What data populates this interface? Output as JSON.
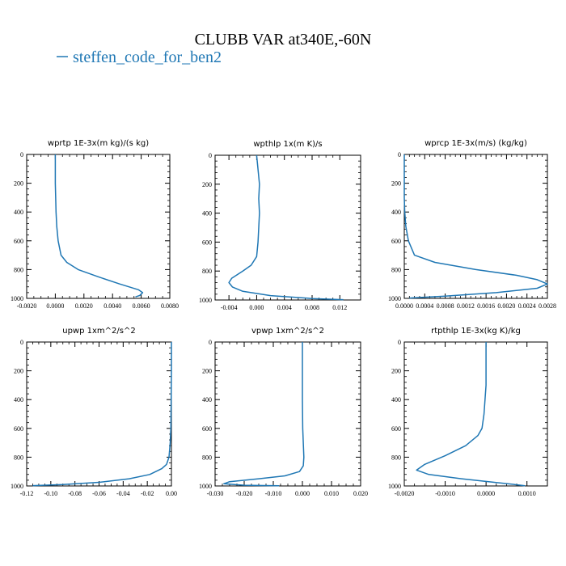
{
  "figure": {
    "title": "CLUBB VAR at340E,-60N",
    "legend": {
      "label": "steffen_code_for_ben2",
      "color": "#1f77b4"
    }
  },
  "chart_data": [
    {
      "type": "line",
      "title": "wprtp  1E-3x(m kg)/(s kg)",
      "xlim": [
        -0.002,
        0.008
      ],
      "ylim": [
        1000,
        0
      ],
      "xticks": [
        -0.002,
        0.0,
        0.002,
        0.004,
        0.006,
        0.008
      ],
      "xtick_labels": [
        "-0.0020",
        "0.0000",
        "0.0020",
        "0.0040",
        "0.0060",
        "0.0080"
      ],
      "yticks": [
        0,
        200,
        400,
        600,
        800,
        1000
      ],
      "ytick_labels": [
        "0",
        "200",
        "400",
        "600",
        "800",
        "1000"
      ],
      "series": [
        {
          "name": "steffen_code_for_ben2",
          "x": [
            0.0,
            0.0,
            5e-05,
            0.0001,
            0.0002,
            0.0004,
            0.0008,
            0.0016,
            0.003,
            0.0045,
            0.0058,
            0.0061,
            0.0059,
            0.0056
          ],
          "y": [
            0,
            200,
            400,
            500,
            600,
            700,
            750,
            800,
            850,
            900,
            940,
            960,
            980,
            990
          ]
        }
      ]
    },
    {
      "type": "line",
      "title": "wpthlp  1x(m K)/s",
      "xlim": [
        -0.006,
        0.015
      ],
      "ylim": [
        1000,
        0
      ],
      "xticks": [
        -0.004,
        0.0,
        0.004,
        0.008,
        0.012
      ],
      "xtick_labels": [
        "-0.004",
        "0.000",
        "0.004",
        "0.008",
        "0.012"
      ],
      "yticks": [
        0,
        200,
        400,
        600,
        800,
        1000
      ],
      "ytick_labels": [
        "0",
        "200",
        "400",
        "600",
        "800",
        "1000"
      ],
      "series": [
        {
          "name": "steffen_code_for_ben2",
          "x": [
            0.0,
            0.0004,
            0.0003,
            0.0004,
            0.0002,
            0.0,
            -0.0008,
            -0.002,
            -0.0036,
            -0.004,
            -0.0035,
            -0.002,
            0.002,
            0.008,
            0.0125
          ],
          "y": [
            0,
            200,
            300,
            400,
            600,
            700,
            760,
            800,
            850,
            880,
            910,
            940,
            970,
            990,
            998
          ]
        }
      ]
    },
    {
      "type": "line",
      "title": "wprcp  1E-3x(m/s) (kg/kg)",
      "xlim": [
        0.0,
        0.0028
      ],
      "ylim": [
        1000,
        0
      ],
      "xticks": [
        0.0,
        0.0004,
        0.0008,
        0.0012,
        0.0016,
        0.002,
        0.0024,
        0.0028
      ],
      "xtick_labels": [
        "0.0000",
        "0.0004",
        "0.0008",
        "0.0012",
        "0.0016",
        "0.0020",
        "0.0024",
        "0.0028"
      ],
      "yticks": [
        0,
        200,
        400,
        600,
        800,
        1000
      ],
      "ytick_labels": [
        "0",
        "200",
        "400",
        "600",
        "800",
        "1000"
      ],
      "series": [
        {
          "name": "steffen_code_for_ben2",
          "x": [
            0.0,
            0.0,
            1e-05,
            3e-05,
            8e-05,
            0.0002,
            0.0006,
            0.0014,
            0.0022,
            0.0026,
            0.0028,
            0.0026,
            0.0018,
            0.0008,
            0.0001
          ],
          "y": [
            0,
            300,
            400,
            500,
            600,
            700,
            750,
            800,
            840,
            870,
            900,
            930,
            960,
            985,
            998
          ]
        }
      ]
    },
    {
      "type": "line",
      "title": "upwp  1xm^2/s^2",
      "xlim": [
        -0.12,
        0.0
      ],
      "ylim": [
        1000,
        0
      ],
      "xticks": [
        -0.12,
        -0.1,
        -0.08,
        -0.06,
        -0.04,
        -0.02,
        0.0
      ],
      "xtick_labels": [
        "-0.12",
        "-0.10",
        "-0.08",
        "-0.06",
        "-0.04",
        "-0.02",
        "0.00"
      ],
      "yticks": [
        0,
        200,
        400,
        600,
        800,
        1000
      ],
      "ytick_labels": [
        "0",
        "200",
        "400",
        "600",
        "800",
        "1000"
      ],
      "series": [
        {
          "name": "steffen_code_for_ben2",
          "x": [
            0.0,
            0.0,
            -0.0002,
            -0.0005,
            -0.001,
            -0.002,
            -0.004,
            -0.008,
            -0.018,
            -0.035,
            -0.06,
            -0.09,
            -0.115
          ],
          "y": [
            0,
            200,
            400,
            600,
            700,
            800,
            850,
            880,
            920,
            950,
            975,
            990,
            998
          ]
        }
      ]
    },
    {
      "type": "line",
      "title": "vpwp  1xm^2/s^2",
      "xlim": [
        -0.03,
        0.02
      ],
      "ylim": [
        1000,
        0
      ],
      "xticks": [
        -0.03,
        -0.02,
        -0.01,
        0.0,
        0.01,
        0.02
      ],
      "xtick_labels": [
        "-0.030",
        "-0.020",
        "-0.010",
        "0.000",
        "0.010",
        "0.020"
      ],
      "yticks": [
        0,
        200,
        400,
        600,
        800,
        1000
      ],
      "ytick_labels": [
        "0",
        "200",
        "400",
        "600",
        "800",
        "1000"
      ],
      "series": [
        {
          "name": "steffen_code_for_ben2",
          "x": [
            0.0,
            0.0,
            0.0,
            0.0001,
            0.0003,
            0.0005,
            0.0003,
            -0.001,
            -0.006,
            -0.015,
            -0.025,
            -0.027,
            -0.02,
            -0.008
          ],
          "y": [
            0,
            200,
            400,
            600,
            700,
            800,
            860,
            900,
            930,
            950,
            970,
            985,
            995,
            999
          ]
        }
      ]
    },
    {
      "type": "line",
      "title": "rtpthlp  1E-3x(kg K)/kg",
      "xlim": [
        -0.002,
        0.0015
      ],
      "ylim": [
        1000,
        0
      ],
      "xticks": [
        -0.002,
        -0.001,
        0.0,
        0.001
      ],
      "xtick_labels": [
        "-0.0020",
        "-0.0010",
        "0.0000",
        "0.0010"
      ],
      "yticks": [
        0,
        200,
        400,
        600,
        800,
        1000
      ],
      "ytick_labels": [
        "0",
        "200",
        "400",
        "600",
        "800",
        "1000"
      ],
      "series": [
        {
          "name": "steffen_code_for_ben2",
          "x": [
            0.0,
            0.0,
            -5e-05,
            -0.0001,
            -0.0002,
            -0.0005,
            -0.001,
            -0.0015,
            -0.0017,
            -0.0014,
            -0.0006,
            0.0002,
            0.0007,
            0.00095
          ],
          "y": [
            0,
            300,
            500,
            600,
            650,
            720,
            790,
            850,
            890,
            920,
            950,
            975,
            990,
            999
          ]
        }
      ]
    }
  ]
}
